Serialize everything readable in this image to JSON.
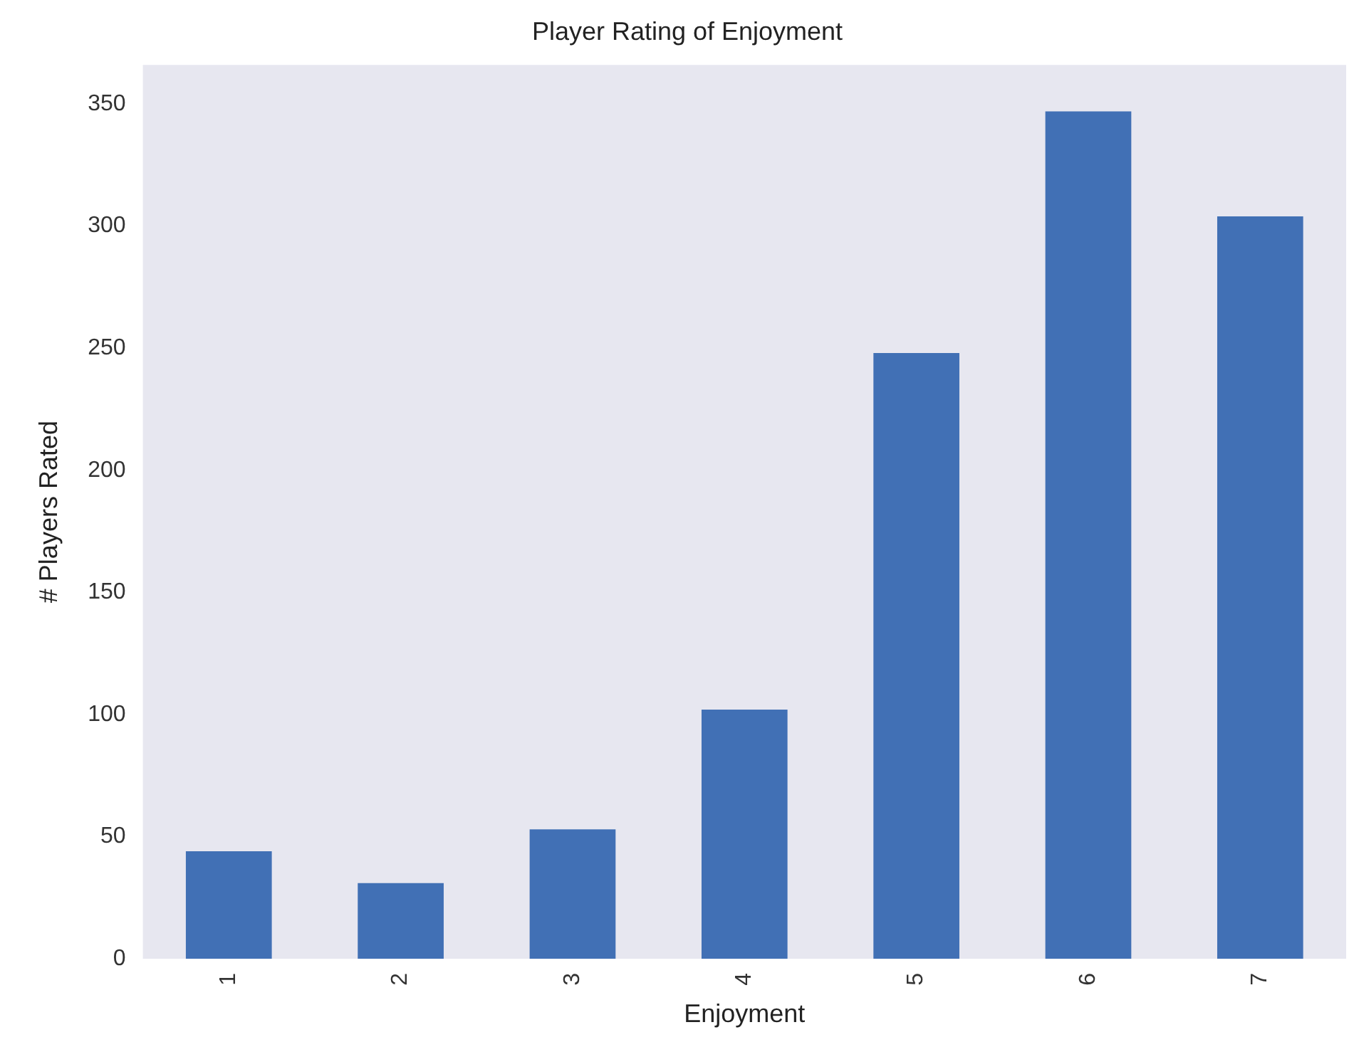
{
  "chart_data": {
    "type": "bar",
    "title": "Player Rating of Enjoyment",
    "xlabel": "Enjoyment",
    "ylabel": "# Players Rated",
    "categories": [
      "1",
      "2",
      "3",
      "4",
      "5",
      "6",
      "7"
    ],
    "values": [
      44,
      31,
      53,
      102,
      248,
      347,
      304
    ],
    "color": "#4170b5",
    "ylim": [
      0,
      366
    ],
    "yticks": [
      0,
      50,
      100,
      150,
      200,
      250,
      300,
      350
    ],
    "grid": false,
    "legend": false
  }
}
